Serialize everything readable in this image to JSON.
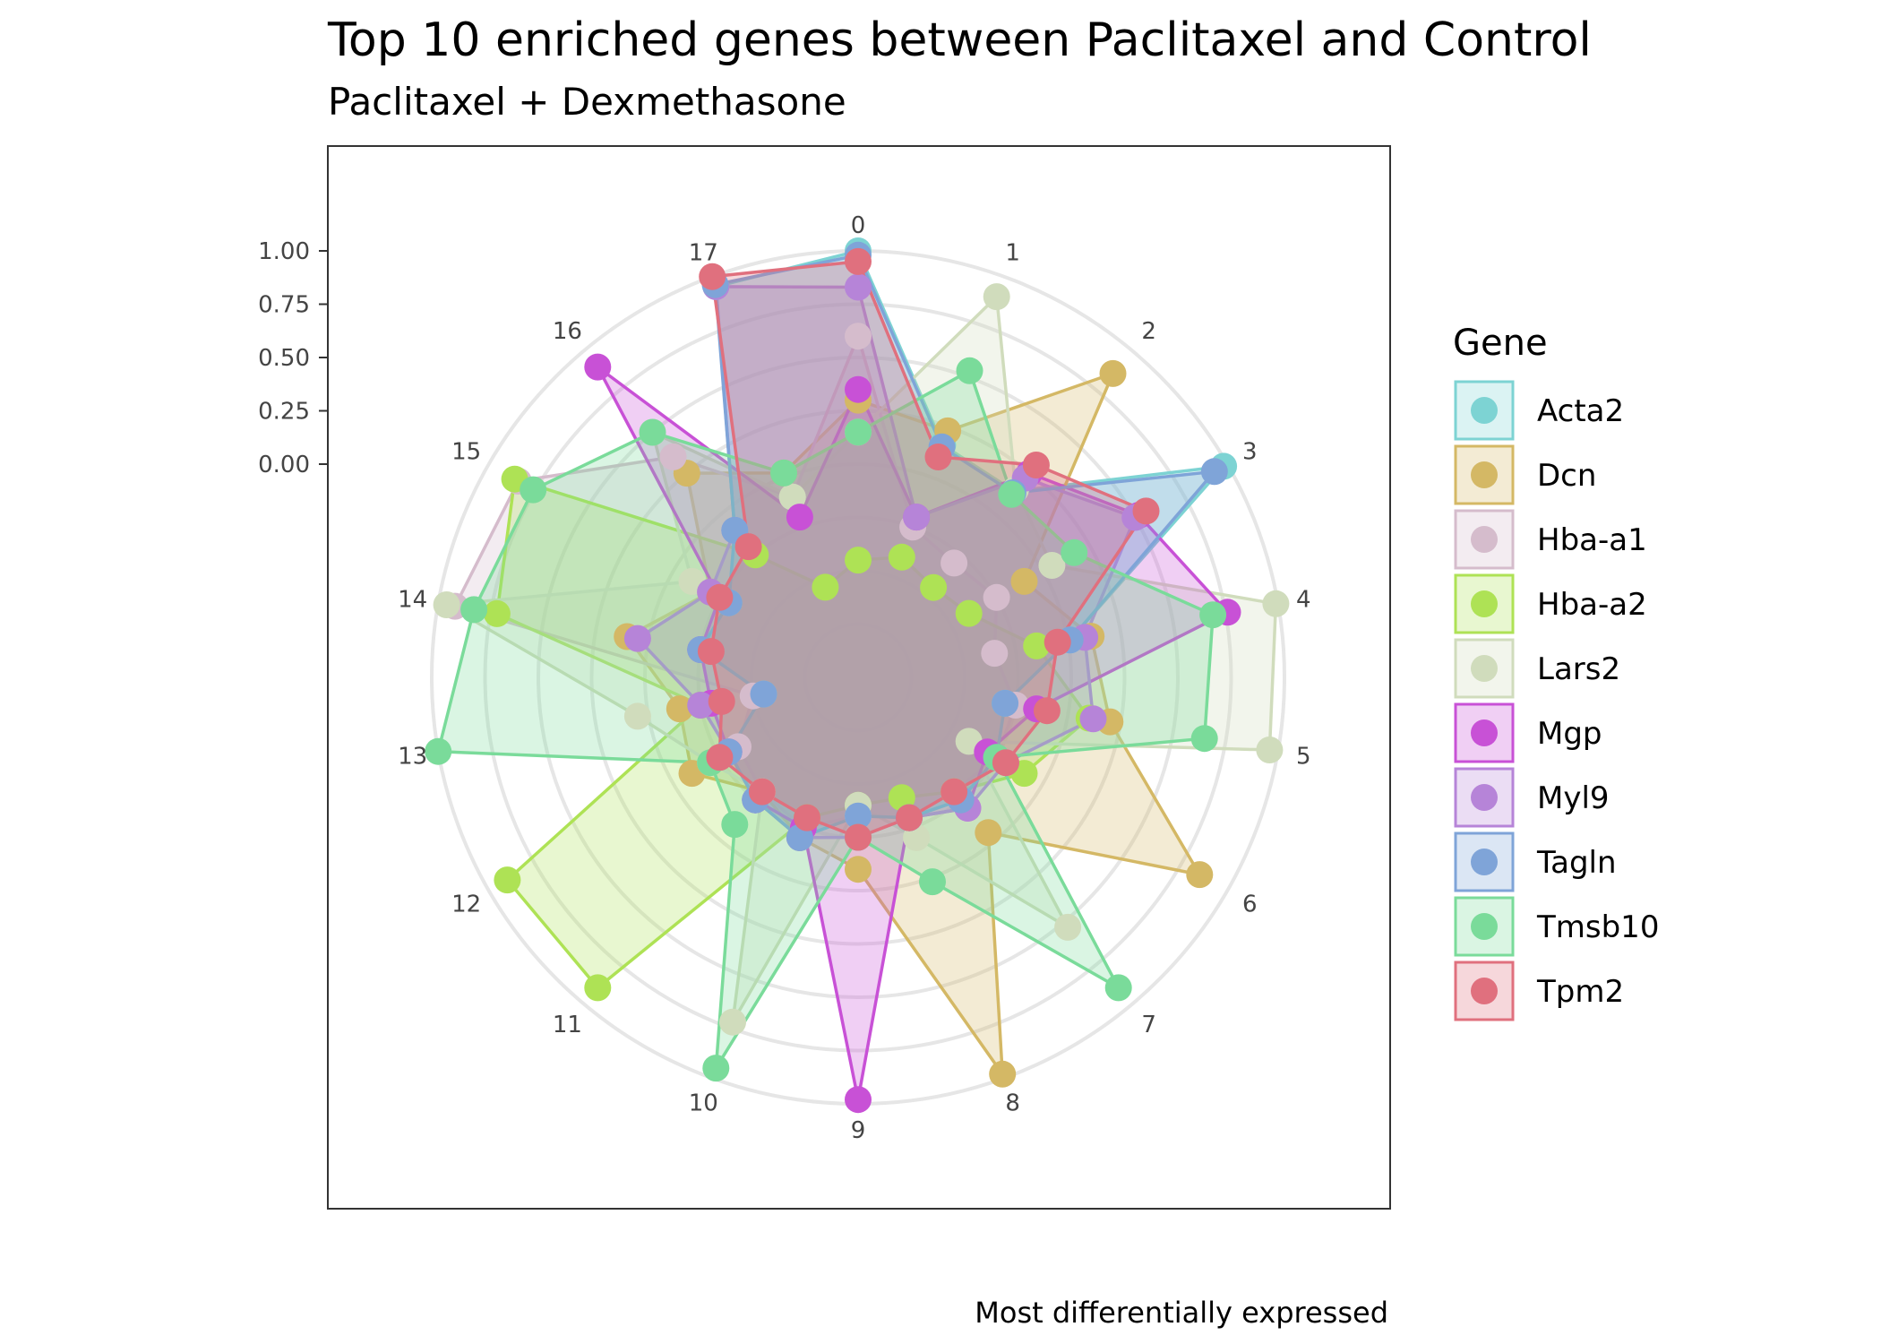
{
  "chart_data": {
    "type": "radar",
    "title": "Top 10 enriched genes between Paclitaxel and Control",
    "subtitle": "Paclitaxel + Dexmethasone",
    "caption": "Most differentially expressed",
    "legend_title": "Gene",
    "legend_position": "right",
    "grid": true,
    "categories": [
      "0",
      "1",
      "2",
      "3",
      "4",
      "5",
      "6",
      "7",
      "8",
      "9",
      "10",
      "11",
      "12",
      "13",
      "14",
      "15",
      "16",
      "17"
    ],
    "radial_ticks": [
      "0.00",
      "0.25",
      "0.50",
      "0.75",
      "1.00"
    ],
    "ylim": [
      -1,
      1
    ],
    "series": [
      {
        "name": "Acta2",
        "color": "#7dd3d3",
        "values": [
          1.0,
          0.16,
          0.14,
          0.98,
          0.01,
          -0.3,
          -0.25,
          -0.25,
          -0.3,
          -0.35,
          -0.2,
          -0.25,
          -0.3,
          -0.55,
          -0.25,
          -0.3,
          -0.1,
          0.95
        ]
      },
      {
        "name": "Dcn",
        "color": "#d4b865",
        "values": [
          0.3,
          0.23,
          0.86,
          -0.1,
          0.11,
          0.2,
          0.85,
          -0.05,
          0.98,
          -0.1,
          -0.2,
          -0.3,
          -0.1,
          -0.15,
          0.1,
          -0.2,
          0.25,
          0.02
        ]
      },
      {
        "name": "Hba-a1",
        "color": "#d5bccc",
        "values": [
          0.6,
          -0.25,
          -0.3,
          -0.25,
          -0.35,
          -0.25,
          -0.25,
          -0.3,
          -0.3,
          -0.35,
          -0.25,
          -0.3,
          -0.35,
          -0.5,
          0.92,
          0.84,
          0.35,
          -0.1
        ]
      },
      {
        "name": "Hba-a2",
        "color": "#aee255",
        "values": [
          -0.45,
          -0.4,
          -0.45,
          -0.4,
          -0.15,
          0.1,
          -0.1,
          -0.3,
          -0.4,
          -0.4,
          -0.3,
          0.9,
          0.9,
          -0.25,
          0.72,
          0.86,
          -0.25,
          -0.55
        ]
      },
      {
        "name": "Lars2",
        "color": "#d0dcbc",
        "values": [
          0.15,
          0.9,
          0.15,
          0.05,
          0.99,
          0.96,
          -0.4,
          0.53,
          -0.2,
          -0.4,
          0.72,
          -0.3,
          -0.2,
          0.05,
          0.96,
          -0.1,
          0.5,
          -0.1
        ]
      },
      {
        "name": "Mgp",
        "color": "#c851d6",
        "values": [
          0.35,
          -0.2,
          0.25,
          0.52,
          0.76,
          -0.15,
          -0.3,
          -0.2,
          -0.3,
          0.98,
          -0.25,
          -0.25,
          -0.3,
          -0.3,
          -0.25,
          -0.25,
          0.9,
          -0.2
        ]
      },
      {
        "name": "Myl9",
        "color": "#b684d8",
        "values": [
          0.83,
          -0.2,
          0.22,
          0.5,
          0.08,
          0.12,
          -0.2,
          -0.2,
          -0.3,
          -0.25,
          -0.2,
          -0.25,
          -0.3,
          -0.25,
          0.05,
          -0.2,
          -0.1,
          0.95
        ]
      },
      {
        "name": "Tagln",
        "color": "#7fa4d8",
        "values": [
          0.98,
          0.15,
          0.13,
          0.93,
          0.01,
          -0.3,
          -0.25,
          -0.25,
          -0.3,
          -0.35,
          -0.2,
          -0.25,
          -0.3,
          -0.55,
          -0.25,
          -0.3,
          -0.1,
          0.96
        ]
      },
      {
        "name": "Tmsb10",
        "color": "#7adb9a",
        "values": [
          0.15,
          0.53,
          0.12,
          0.17,
          0.69,
          0.65,
          -0.25,
          0.9,
          0.02,
          -0.25,
          0.95,
          -0.1,
          -0.2,
          1.0,
          0.83,
          0.76,
          0.5,
          0.02
        ]
      },
      {
        "name": "Tpm2",
        "color": "#e0707e",
        "values": [
          0.95,
          0.1,
          0.3,
          0.56,
          -0.05,
          -0.1,
          -0.2,
          -0.3,
          -0.3,
          -0.25,
          -0.3,
          -0.3,
          -0.25,
          -0.35,
          -0.3,
          -0.25,
          -0.2,
          1.0
        ]
      }
    ]
  }
}
